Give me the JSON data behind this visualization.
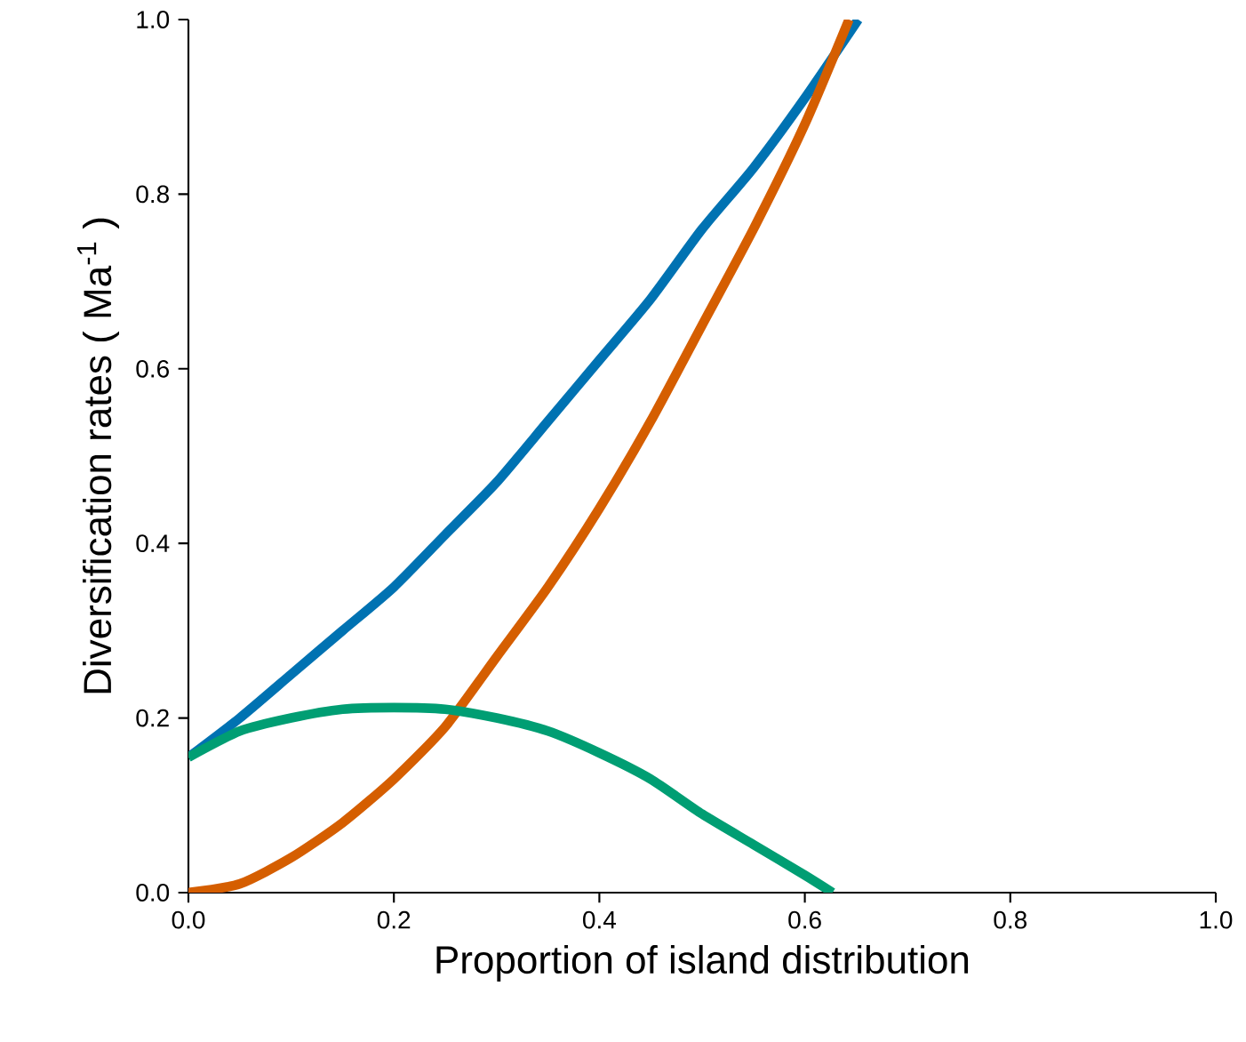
{
  "chart_data": {
    "type": "line",
    "xlabel": "Proportion of island distribution",
    "ylabel": "Diversification rates ( Ma$^{-1}$ )",
    "xlim": [
      0,
      1
    ],
    "ylim": [
      0,
      1
    ],
    "xticks": [
      {
        "value": 0,
        "label": "0.0"
      },
      {
        "value": 0.2,
        "label": "0.2"
      },
      {
        "value": 0.4,
        "label": "0.4"
      },
      {
        "value": 0.6,
        "label": "0.6"
      },
      {
        "value": 0.8,
        "label": "0.8"
      },
      {
        "value": 1,
        "label": "1.0"
      }
    ],
    "yticks": [
      {
        "value": 0,
        "label": "0.0"
      },
      {
        "value": 0.2,
        "label": "0.2"
      },
      {
        "value": 0.4,
        "label": "0.4"
      },
      {
        "value": 0.6,
        "label": "0.6"
      },
      {
        "value": 0.8,
        "label": "0.8"
      },
      {
        "value": 1,
        "label": "1.0"
      }
    ],
    "marker": "none",
    "line_style": "solid",
    "series": [
      {
        "color": "#0072b2",
        "x": [
          0,
          0.05,
          0.1,
          0.15,
          0.2,
          0.25,
          0.3,
          0.35,
          0.4,
          0.45,
          0.5,
          0.55,
          0.6,
          0.652
        ],
        "values": [
          0.155,
          0.2,
          0.25,
          0.3,
          0.35,
          0.41,
          0.47,
          0.54,
          0.61,
          0.68,
          0.76,
          0.83,
          0.91,
          1.0
        ]
      },
      {
        "color": "#d55e00",
        "x": [
          0,
          0.05,
          0.1,
          0.15,
          0.2,
          0.25,
          0.3,
          0.35,
          0.4,
          0.45,
          0.5,
          0.55,
          0.6,
          0.643
        ],
        "values": [
          0,
          0.01,
          0.04,
          0.08,
          0.13,
          0.19,
          0.27,
          0.35,
          0.44,
          0.54,
          0.65,
          0.76,
          0.88,
          1.0
        ]
      },
      {
        "color": "#009e73",
        "x": [
          0,
          0.05,
          0.1,
          0.15,
          0.2,
          0.25,
          0.3,
          0.35,
          0.4,
          0.45,
          0.5,
          0.55,
          0.6,
          0.627
        ],
        "values": [
          0.155,
          0.185,
          0.2,
          0.21,
          0.212,
          0.21,
          0.2,
          0.185,
          0.16,
          0.13,
          0.09,
          0.055,
          0.02,
          0
        ]
      }
    ]
  }
}
